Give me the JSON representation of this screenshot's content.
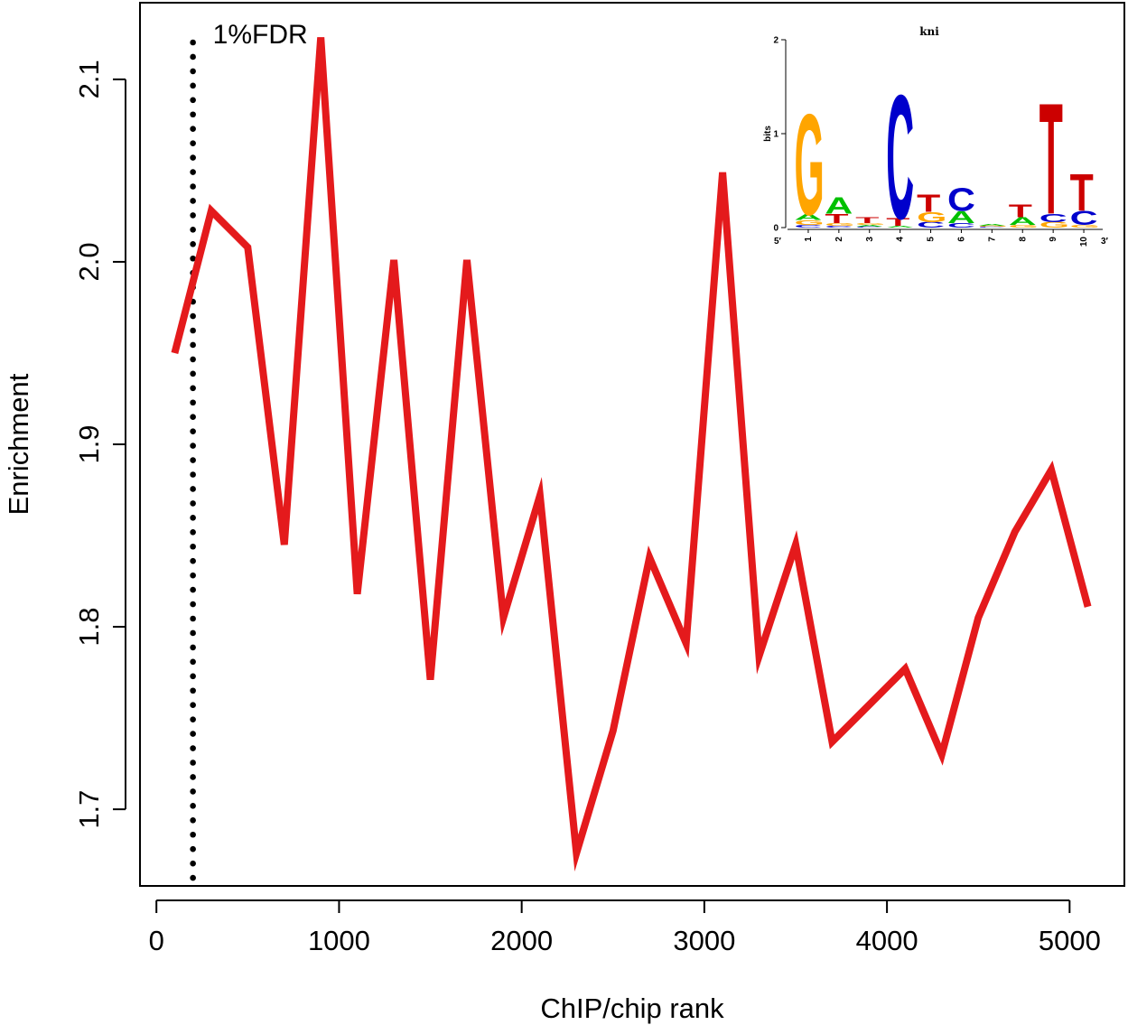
{
  "chart_data": {
    "type": "line",
    "title": "",
    "xlabel": "ChIP/chip rank",
    "ylabel": "Enrichment",
    "xlim": [
      -90,
      5300
    ],
    "ylim": [
      1.658,
      2.142
    ],
    "xticks": [
      0,
      1000,
      2000,
      3000,
      4000,
      5000
    ],
    "yticks": [
      1.7,
      1.8,
      1.9,
      2.0,
      2.1
    ],
    "series": [
      {
        "color": "#e41a1c",
        "x": [
          100,
          300,
          500,
          700,
          900,
          1100,
          1300,
          1500,
          1700,
          1900,
          2100,
          2300,
          2500,
          2700,
          2900,
          3100,
          3300,
          3500,
          3700,
          3900,
          4100,
          4300,
          4500,
          4700,
          4900,
          5100
        ],
        "y": [
          1.95,
          2.028,
          2.008,
          1.845,
          2.123,
          1.818,
          2.001,
          1.771,
          2.001,
          1.805,
          1.872,
          1.676,
          1.743,
          1.838,
          1.791,
          2.049,
          1.784,
          1.845,
          1.737,
          1.757,
          1.777,
          1.73,
          1.805,
          1.852,
          1.886,
          1.811
        ]
      }
    ],
    "annotations": [
      {
        "type": "vline-dotted",
        "x": 200,
        "label": "1%FDR"
      }
    ],
    "grid": false,
    "inset_logo": {
      "title": "kni",
      "ylabel": "bits",
      "yticks": [
        "0",
        "1",
        "2"
      ],
      "ymax": 2,
      "positions": [
        "1",
        "2",
        "3",
        "4",
        "5",
        "6",
        "7",
        "8",
        "9",
        "10"
      ],
      "left_end": "5′",
      "right_end": "3′",
      "colors": {
        "A": "#00c000",
        "C": "#0000cc",
        "G": "#ffa500",
        "T": "#cc0000"
      },
      "columns": [
        [
          [
            "C",
            0.03
          ],
          [
            "G",
            0.05
          ],
          [
            "A",
            0.06
          ],
          [
            "G",
            1.1
          ]
        ],
        [
          [
            "C",
            0.02
          ],
          [
            "G",
            0.03
          ],
          [
            "T",
            0.1
          ],
          [
            "A",
            0.18
          ]
        ],
        [
          [
            "C",
            0.01
          ],
          [
            "A",
            0.02
          ],
          [
            "G",
            0.02
          ],
          [
            "T",
            0.06
          ]
        ],
        [
          [
            "A",
            0.02
          ],
          [
            "T",
            0.08
          ],
          [
            "C",
            1.35
          ]
        ],
        [
          [
            "C",
            0.06
          ],
          [
            "G",
            0.11
          ],
          [
            "T",
            0.19
          ]
        ],
        [
          [
            "C",
            0.05
          ],
          [
            "A",
            0.13
          ],
          [
            "C",
            0.25
          ]
        ],
        [
          [
            "C",
            0.01
          ],
          [
            "G",
            0.01
          ],
          [
            "A",
            0.02
          ]
        ],
        [
          [
            "G",
            0.03
          ],
          [
            "A",
            0.08
          ],
          [
            "T",
            0.14
          ]
        ],
        [
          [
            "G",
            0.06
          ],
          [
            "C",
            0.09
          ],
          [
            "T",
            1.21
          ]
        ],
        [
          [
            "G",
            0.03
          ],
          [
            "C",
            0.15
          ],
          [
            "T",
            0.4
          ]
        ]
      ]
    }
  }
}
